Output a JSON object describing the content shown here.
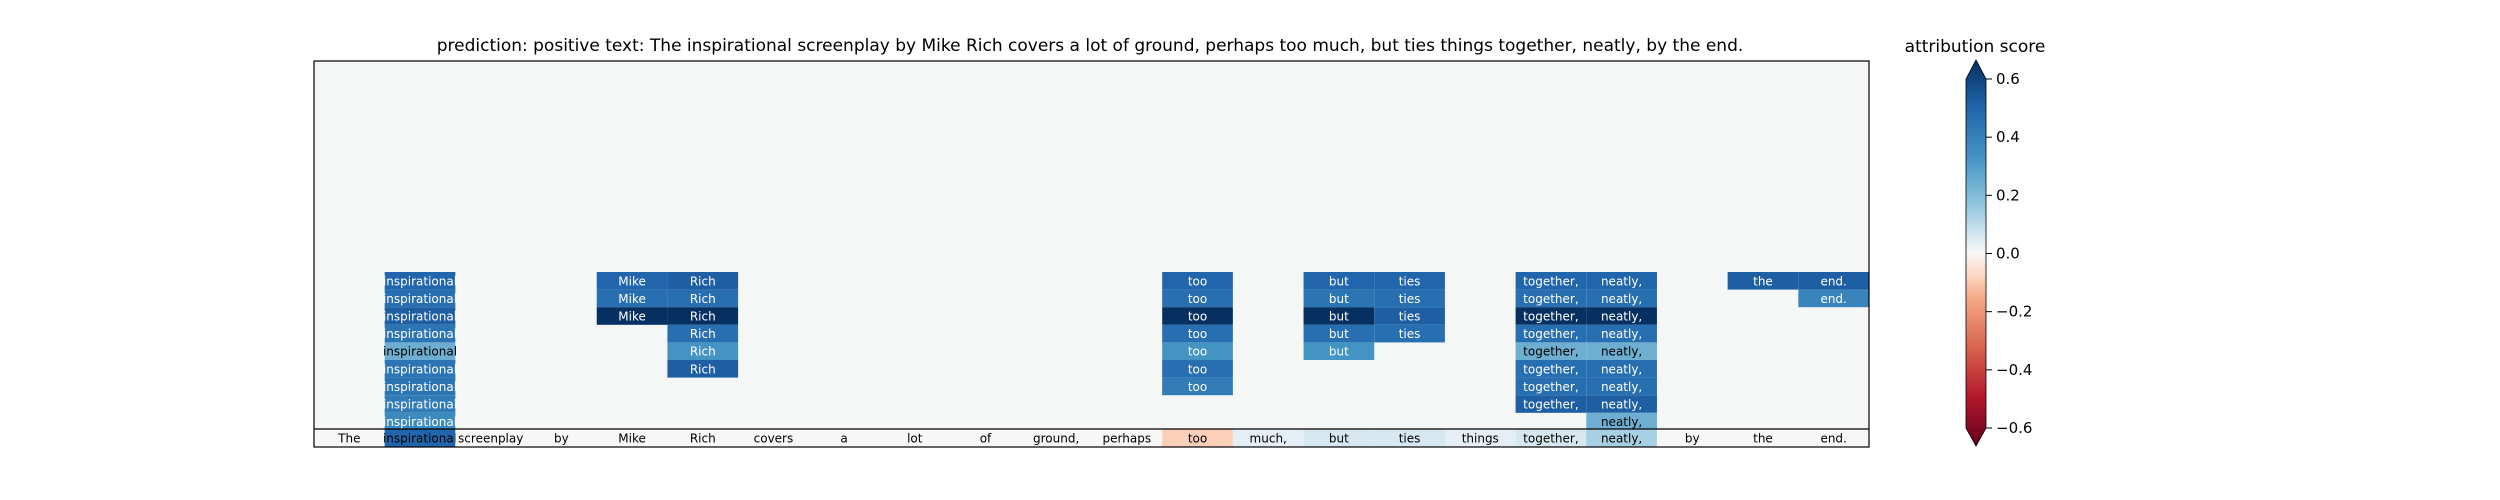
{
  "chart_data": {
    "type": "heatmap",
    "title": "prediction:  positive     text:  The inspirational screenplay by Mike Rich covers a lot of ground, perhaps too much, but ties things together, neatly, by the end.",
    "tokens": [
      "The",
      "inspirational",
      "screenplay",
      "by",
      "Mike",
      "Rich",
      "covers",
      "a",
      "lot",
      "of",
      "ground,",
      "perhaps",
      "too",
      "much,",
      "but",
      "ties",
      "things",
      "together,",
      "neatly,",
      "by",
      "the",
      "end."
    ],
    "bottom_row_scores": [
      0.0,
      0.45,
      0.0,
      0.0,
      0.0,
      0.0,
      0.0,
      0.0,
      0.0,
      0.0,
      0.0,
      0.0,
      -0.08,
      0.03,
      0.05,
      0.05,
      0.03,
      0.05,
      0.12,
      0.0,
      0.0,
      0.0
    ],
    "cells": [
      {
        "row": 0,
        "col": 1,
        "text": "inspirational",
        "value": 0.45
      },
      {
        "row": 0,
        "col": 4,
        "text": "Mike",
        "value": 0.45
      },
      {
        "row": 0,
        "col": 5,
        "text": "Rich",
        "value": 0.47
      },
      {
        "row": 0,
        "col": 12,
        "text": "too",
        "value": 0.45
      },
      {
        "row": 0,
        "col": 14,
        "text": "but",
        "value": 0.45
      },
      {
        "row": 0,
        "col": 15,
        "text": "ties",
        "value": 0.45
      },
      {
        "row": 0,
        "col": 17,
        "text": "together,",
        "value": 0.45
      },
      {
        "row": 0,
        "col": 18,
        "text": "neatly,",
        "value": 0.45
      },
      {
        "row": 0,
        "col": 20,
        "text": "the",
        "value": 0.47
      },
      {
        "row": 0,
        "col": 21,
        "text": "end.",
        "value": 0.47
      },
      {
        "row": 1,
        "col": 1,
        "text": "inspirational",
        "value": 0.42
      },
      {
        "row": 1,
        "col": 4,
        "text": "Mike",
        "value": 0.42
      },
      {
        "row": 1,
        "col": 5,
        "text": "Rich",
        "value": 0.42
      },
      {
        "row": 1,
        "col": 12,
        "text": "too",
        "value": 0.42
      },
      {
        "row": 1,
        "col": 14,
        "text": "but",
        "value": 0.4
      },
      {
        "row": 1,
        "col": 15,
        "text": "ties",
        "value": 0.42
      },
      {
        "row": 1,
        "col": 17,
        "text": "together,",
        "value": 0.42
      },
      {
        "row": 1,
        "col": 18,
        "text": "neatly,",
        "value": 0.42
      },
      {
        "row": 1,
        "col": 21,
        "text": "end.",
        "value": 0.35
      },
      {
        "row": 2,
        "col": 1,
        "text": "inspirational",
        "value": 0.47
      },
      {
        "row": 2,
        "col": 4,
        "text": "Mike",
        "value": 0.65
      },
      {
        "row": 2,
        "col": 5,
        "text": "Rich",
        "value": 0.65
      },
      {
        "row": 2,
        "col": 12,
        "text": "too",
        "value": 0.65
      },
      {
        "row": 2,
        "col": 14,
        "text": "but",
        "value": 0.65
      },
      {
        "row": 2,
        "col": 15,
        "text": "ties",
        "value": 0.47
      },
      {
        "row": 2,
        "col": 17,
        "text": "together,",
        "value": 0.65
      },
      {
        "row": 2,
        "col": 18,
        "text": "neatly,",
        "value": 0.65
      },
      {
        "row": 3,
        "col": 1,
        "text": "inspirational",
        "value": 0.4
      },
      {
        "row": 3,
        "col": 5,
        "text": "Rich",
        "value": 0.42
      },
      {
        "row": 3,
        "col": 12,
        "text": "too",
        "value": 0.42
      },
      {
        "row": 3,
        "col": 14,
        "text": "but",
        "value": 0.42
      },
      {
        "row": 3,
        "col": 15,
        "text": "ties",
        "value": 0.42
      },
      {
        "row": 3,
        "col": 17,
        "text": "together,",
        "value": 0.42
      },
      {
        "row": 3,
        "col": 18,
        "text": "neatly,",
        "value": 0.42
      },
      {
        "row": 4,
        "col": 1,
        "text": "inspirational",
        "value": 0.22
      },
      {
        "row": 4,
        "col": 5,
        "text": "Rich",
        "value": 0.3
      },
      {
        "row": 4,
        "col": 12,
        "text": "too",
        "value": 0.3
      },
      {
        "row": 4,
        "col": 14,
        "text": "but",
        "value": 0.3
      },
      {
        "row": 4,
        "col": 17,
        "text": "together,",
        "value": 0.22
      },
      {
        "row": 4,
        "col": 18,
        "text": "neatly,",
        "value": 0.22
      },
      {
        "row": 5,
        "col": 1,
        "text": "inspirational",
        "value": 0.4
      },
      {
        "row": 5,
        "col": 5,
        "text": "Rich",
        "value": 0.47
      },
      {
        "row": 5,
        "col": 12,
        "text": "too",
        "value": 0.42
      },
      {
        "row": 5,
        "col": 17,
        "text": "together,",
        "value": 0.42
      },
      {
        "row": 5,
        "col": 18,
        "text": "neatly,",
        "value": 0.42
      },
      {
        "row": 6,
        "col": 1,
        "text": "inspirational",
        "value": 0.4
      },
      {
        "row": 6,
        "col": 12,
        "text": "too",
        "value": 0.38
      },
      {
        "row": 6,
        "col": 17,
        "text": "together,",
        "value": 0.42
      },
      {
        "row": 6,
        "col": 18,
        "text": "neatly,",
        "value": 0.42
      },
      {
        "row": 7,
        "col": 1,
        "text": "inspirational",
        "value": 0.38
      },
      {
        "row": 7,
        "col": 17,
        "text": "together,",
        "value": 0.47
      },
      {
        "row": 7,
        "col": 18,
        "text": "neatly,",
        "value": 0.47
      },
      {
        "row": 8,
        "col": 1,
        "text": "inspirational",
        "value": 0.33
      },
      {
        "row": 8,
        "col": 18,
        "text": "neatly,",
        "value": 0.22
      }
    ],
    "colorbar": {
      "label": "attribution score",
      "ticks": [
        "0.6",
        "0.4",
        "0.2",
        "0.0",
        "−0.2",
        "−0.4",
        "−0.6"
      ],
      "range": [
        -0.6,
        0.6
      ],
      "colormap": "RdBu"
    },
    "background_color": "#f5f7f6"
  }
}
